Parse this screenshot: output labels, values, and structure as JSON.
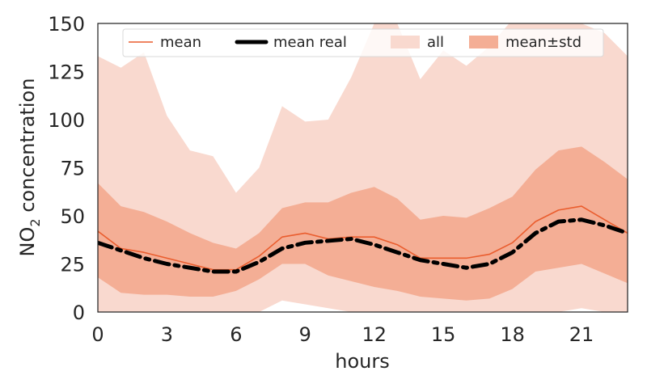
{
  "chart_data": {
    "type": "line",
    "xlabel": "hours",
    "ylabel_main": "NO",
    "ylabel_sub": "2",
    "ylabel_rest": " concentration",
    "xlim": [
      0,
      23
    ],
    "ylim": [
      0,
      150
    ],
    "xticks": [
      0,
      3,
      6,
      9,
      12,
      15,
      18,
      21
    ],
    "yticks": [
      0,
      25,
      50,
      75,
      100,
      125,
      150
    ],
    "grid": false,
    "legend_placement": "top-center",
    "x": [
      0,
      1,
      2,
      3,
      4,
      5,
      6,
      7,
      8,
      9,
      10,
      11,
      12,
      13,
      14,
      15,
      16,
      17,
      18,
      19,
      20,
      21,
      22,
      23
    ],
    "series": [
      {
        "name": "all",
        "kind": "band",
        "color": "#f9d9cf",
        "lower": [
          0,
          0,
          0,
          0,
          0,
          0,
          0,
          0,
          6,
          4,
          2,
          0,
          0,
          0,
          0,
          0,
          0,
          0,
          0,
          0,
          0,
          2,
          0,
          0
        ],
        "upper": [
          133,
          127,
          135,
          102,
          84,
          81,
          62,
          75,
          107,
          99,
          100,
          122,
          150,
          150,
          121,
          136,
          128,
          138,
          152,
          152,
          152,
          150,
          145,
          133
        ]
      },
      {
        "name": "mean±std",
        "kind": "band",
        "color": "#f4ae95",
        "lower": [
          18,
          10,
          9,
          9,
          8,
          8,
          11,
          17,
          25,
          25,
          19,
          16,
          13,
          11,
          8,
          7,
          6,
          7,
          12,
          21,
          23,
          25,
          20,
          15
        ],
        "upper": [
          67,
          55,
          52,
          47,
          41,
          36,
          33,
          41,
          54,
          57,
          57,
          62,
          65,
          59,
          48,
          50,
          49,
          54,
          60,
          74,
          84,
          86,
          78,
          69
        ]
      },
      {
        "name": "mean",
        "kind": "line",
        "color": "#ea5d2e",
        "values": [
          42,
          33,
          31,
          28,
          25,
          22,
          22,
          29,
          39,
          41,
          38,
          39,
          39,
          35,
          28,
          28,
          28,
          30,
          36,
          47,
          53,
          55,
          48,
          41
        ]
      },
      {
        "name": "mean real",
        "kind": "line",
        "style": "dashdot",
        "color": "#000000",
        "values": [
          36,
          32,
          28,
          25,
          23,
          21,
          21,
          26,
          33,
          36,
          37,
          38,
          35,
          31,
          27,
          25,
          23,
          25,
          31,
          41,
          47,
          48,
          45,
          41
        ]
      }
    ],
    "legend": [
      "mean",
      "mean real",
      "all",
      "mean±std"
    ]
  }
}
